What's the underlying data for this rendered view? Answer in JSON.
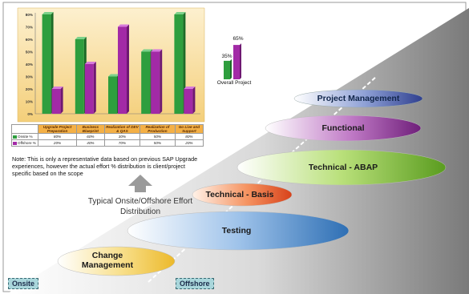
{
  "chart_data": {
    "type": "bar",
    "categories": [
      "Upgrade Project Preparation",
      "Business Blueprint",
      "Realization of DEV & QAS",
      "Realization of Production",
      "Go Live and Support"
    ],
    "series": [
      {
        "name": "Onsite %",
        "values": [
          80,
          60,
          30,
          50,
          80
        ],
        "color": "#2e9e3e"
      },
      {
        "name": "Offshore %",
        "values": [
          20,
          40,
          70,
          50,
          20
        ],
        "color": "#a22aa6"
      }
    ],
    "table_values": {
      "Onsite %": [
        "80%",
        "60%",
        "30%",
        "50%",
        "80%"
      ],
      "Offshore %": [
        "20%",
        "40%",
        "70%",
        "50%",
        "20%"
      ]
    },
    "ylim": [
      0,
      80
    ],
    "y_ticks": [
      "0%",
      "10%",
      "20%",
      "30%",
      "40%",
      "50%",
      "60%",
      "70%",
      "80%"
    ],
    "grid": false,
    "legend": "table-below"
  },
  "overall": {
    "onsite_label": "35%",
    "offshore_label": "65%",
    "onsite_value": 35,
    "offshore_value": 65,
    "label": "Overall Project"
  },
  "note": {
    "text": "Note: This is only a representative data based on previous SAP Upgrade experiences, however the  actual effort % distribution is client/project specific based on the scope"
  },
  "caption": {
    "text": "Typical Onsite/Offshore Effort Distribution"
  },
  "layers": [
    {
      "label": "Project Management"
    },
    {
      "label": "Functional"
    },
    {
      "label": "Technical - ABAP"
    },
    {
      "label": "Technical  - Basis"
    },
    {
      "label": "Testing"
    },
    {
      "label": "Change Management"
    }
  ],
  "tags": {
    "onsite": "Onsite",
    "offshore": "Offshore"
  },
  "colors": {
    "onsite": "#2e9e3e",
    "offshore": "#a22aa6",
    "chart_bg": "#f7dc9c",
    "tag_bg": "#a9d6db"
  }
}
